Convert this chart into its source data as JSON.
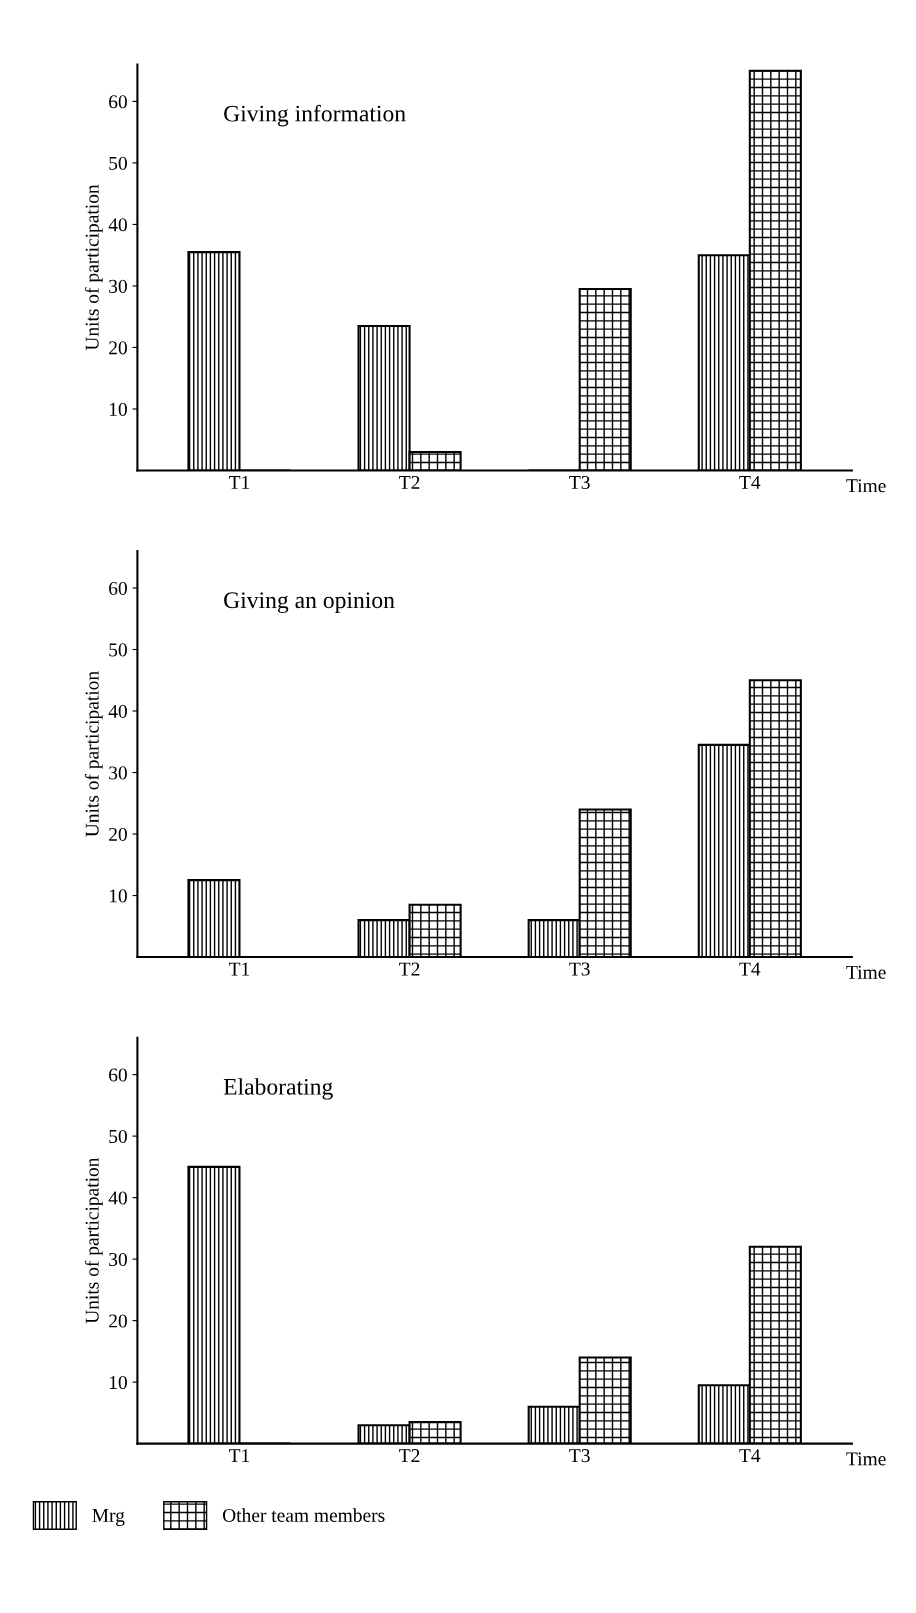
{
  "chart_data": [
    {
      "type": "bar",
      "title": "Giving information",
      "xlabel": "Time",
      "ylabel": "Units of participation",
      "categories": [
        "T1",
        "T2",
        "T3",
        "T4"
      ],
      "ylim": [
        0,
        66
      ],
      "yticks": [
        10,
        20,
        30,
        40,
        50,
        60
      ],
      "grid": false,
      "legend": false,
      "series": [
        {
          "color": "#000000",
          "values": [
            35.5,
            23.5,
            0,
            35
          ]
        },
        {
          "color": "#000000",
          "values": [
            0,
            3,
            29.5,
            65
          ]
        }
      ]
    },
    {
      "type": "bar",
      "title": "Giving an opinion",
      "xlabel": "Time",
      "ylabel": "Units of participation",
      "categories": [
        "T1",
        "T2",
        "T3",
        "T4"
      ],
      "ylim": [
        0,
        66
      ],
      "yticks": [
        10,
        20,
        30,
        40,
        50,
        60
      ],
      "grid": false,
      "legend": false,
      "series": [
        {
          "color": "#000000",
          "values": [
            12.5,
            6,
            6,
            34.5
          ]
        },
        {
          "color": "#000000",
          "values": [
            0,
            8.5,
            24,
            45
          ]
        }
      ]
    },
    {
      "type": "bar",
      "title": "Elaborating",
      "xlabel": "Time",
      "ylabel": "Units of participation",
      "categories": [
        "T1",
        "T2",
        "T3",
        "T4"
      ],
      "ylim": [
        0,
        66
      ],
      "yticks": [
        10,
        20,
        30,
        40,
        50,
        60
      ],
      "grid": false,
      "legend": "bottom left",
      "series": [
        {
          "name": "Mrg",
          "color": "#000000",
          "values": [
            45,
            3,
            6,
            9.5
          ]
        },
        {
          "name": "Other team members",
          "color": "#000000",
          "values": [
            0,
            3.5,
            14,
            32
          ]
        }
      ]
    }
  ]
}
